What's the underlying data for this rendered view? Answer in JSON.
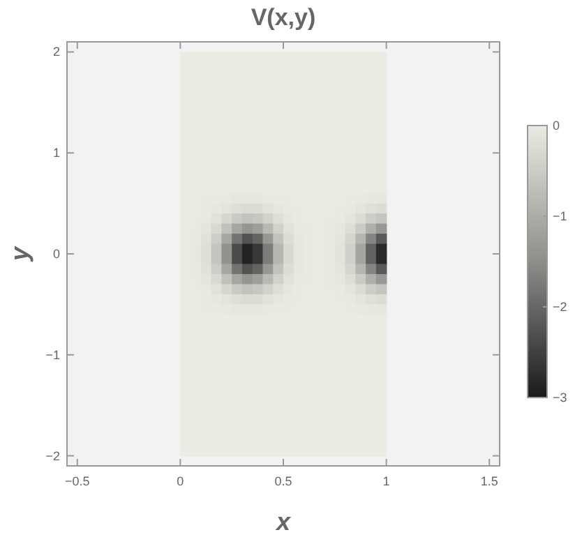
{
  "chart_data": {
    "type": "heatmap",
    "title": "V(x,y)",
    "xlabel": "x",
    "ylabel": "y",
    "xlim": [
      -0.55,
      1.55
    ],
    "xticks": [
      -0.5,
      0,
      0.5,
      1,
      1.5
    ],
    "ylim": [
      -2.1,
      2.1
    ],
    "yticks": [
      -2,
      -1,
      0,
      1,
      2
    ],
    "clim": [
      -3,
      0
    ],
    "cticks": [
      -3,
      -2,
      -1,
      0
    ],
    "x": [
      0.025,
      0.075,
      0.125,
      0.175,
      0.225,
      0.275,
      0.325,
      0.375,
      0.425,
      0.475,
      0.525,
      0.575,
      0.625,
      0.675,
      0.725,
      0.775,
      0.825,
      0.875,
      0.925,
      0.975
    ],
    "y": [
      1.95,
      1.85,
      1.75,
      1.65,
      1.55,
      1.45,
      1.35,
      1.25,
      1.15,
      1.05,
      0.95,
      0.85,
      0.75,
      0.65,
      0.55,
      0.45,
      0.35,
      0.25,
      0.15,
      0.05,
      -0.05,
      -0.15,
      -0.25,
      -0.35,
      -0.45,
      -0.55,
      -0.65,
      -0.75,
      -0.85,
      -0.95,
      -1.05,
      -1.15,
      -1.25,
      -1.35,
      -1.45,
      -1.55,
      -1.65,
      -1.75,
      -1.85,
      -1.95
    ],
    "cells": [
      [
        0,
        0,
        0,
        0,
        0,
        0,
        0,
        0,
        0,
        0,
        0,
        0,
        0,
        0,
        0,
        0,
        0,
        0,
        0,
        0
      ],
      [
        0,
        0,
        0,
        0,
        0,
        0,
        0,
        0,
        0,
        0,
        0,
        0,
        0,
        0,
        0,
        0,
        0,
        0,
        0,
        0
      ],
      [
        0,
        0,
        0,
        0,
        0,
        0,
        0,
        0,
        0,
        0,
        0,
        0,
        0,
        0,
        0,
        0,
        0,
        0,
        0,
        0
      ],
      [
        0,
        0,
        0,
        0,
        0,
        0,
        0,
        0,
        0,
        0,
        0,
        0,
        0,
        0,
        0,
        0,
        0,
        0,
        0,
        0
      ],
      [
        0,
        0,
        0,
        0,
        0,
        0,
        0,
        0,
        0,
        0,
        0,
        0,
        0,
        0,
        0,
        0,
        0,
        0,
        0,
        0
      ],
      [
        0,
        0,
        0,
        0,
        0,
        0,
        0,
        0,
        0,
        0,
        0,
        0,
        0,
        0,
        0,
        0,
        0,
        0,
        0,
        0
      ],
      [
        0,
        0,
        0,
        0,
        0,
        0,
        0,
        0,
        0,
        0,
        0,
        0,
        0,
        0,
        0,
        0,
        0,
        0,
        0,
        0
      ],
      [
        0,
        0,
        0,
        0,
        0,
        0,
        0,
        0,
        0,
        0,
        0,
        0,
        0,
        0,
        0,
        0,
        0,
        0,
        0,
        0
      ],
      [
        0,
        0,
        0,
        0,
        0,
        0,
        0,
        0,
        0,
        0,
        0,
        0,
        0,
        0,
        0,
        0,
        0,
        0,
        0,
        0
      ],
      [
        0,
        0,
        0,
        0,
        0,
        0,
        0,
        0,
        0,
        0,
        0,
        0,
        0,
        0,
        0,
        0,
        0,
        0,
        0,
        0
      ],
      [
        0,
        0,
        0,
        0,
        0,
        0,
        0,
        0,
        0,
        0,
        0,
        0,
        0,
        0,
        0,
        0,
        0,
        0,
        0,
        0
      ],
      [
        0,
        0,
        0,
        0,
        0,
        0,
        0,
        0,
        0,
        0,
        0,
        0,
        0,
        0,
        0,
        0,
        0,
        0,
        0,
        0
      ],
      [
        0,
        0,
        0,
        0,
        0,
        0,
        0,
        0,
        0,
        0,
        0,
        0,
        0,
        0,
        0,
        0,
        0,
        0,
        0,
        0
      ],
      [
        0,
        0,
        0,
        0,
        0,
        0,
        0,
        0,
        0,
        0,
        0,
        0,
        0,
        0,
        0,
        0,
        0,
        0,
        0,
        0
      ],
      [
        0,
        0,
        -0.01,
        -0.01,
        -0.03,
        -0.06,
        -0.07,
        -0.06,
        -0.04,
        -0.02,
        -0.01,
        0,
        0,
        0,
        0,
        0,
        -0.01,
        -0.03,
        -0.05,
        -0.07
      ],
      [
        0,
        0,
        -0.02,
        -0.05,
        -0.12,
        -0.19,
        -0.24,
        -0.22,
        -0.14,
        -0.07,
        -0.02,
        -0.01,
        0,
        0,
        0,
        -0.01,
        -0.04,
        -0.09,
        -0.17,
        -0.23
      ],
      [
        0,
        -0.01,
        -0.04,
        -0.14,
        -0.32,
        -0.53,
        -0.65,
        -0.58,
        -0.38,
        -0.19,
        -0.07,
        -0.02,
        0,
        0,
        -0.01,
        -0.03,
        -0.1,
        -0.25,
        -0.46,
        -0.62
      ],
      [
        0,
        -0.02,
        -0.09,
        -0.29,
        -0.67,
        -1.12,
        -1.37,
        -1.23,
        -0.81,
        -0.4,
        -0.14,
        -0.04,
        -0.01,
        0,
        -0.01,
        -0.06,
        -0.21,
        -0.52,
        -0.97,
        -1.32
      ],
      [
        0,
        -0.04,
        -0.16,
        -0.48,
        -1.1,
        -1.84,
        -2.26,
        -2.03,
        -1.34,
        -0.65,
        -0.23,
        -0.06,
        -0.01,
        0,
        -0.02,
        -0.1,
        -0.34,
        -0.86,
        -1.6,
        -2.18
      ],
      [
        0,
        -0.05,
        -0.2,
        -0.62,
        -1.42,
        -2.36,
        -2.9,
        -2.61,
        -1.72,
        -0.84,
        -0.3,
        -0.08,
        -0.01,
        0,
        -0.03,
        -0.13,
        -0.44,
        -1.11,
        -2.06,
        -2.8
      ],
      [
        0,
        -0.05,
        -0.2,
        -0.62,
        -1.42,
        -2.36,
        -2.9,
        -2.61,
        -1.72,
        -0.84,
        -0.3,
        -0.08,
        -0.01,
        0,
        -0.03,
        -0.13,
        -0.44,
        -1.11,
        -2.06,
        -2.8
      ],
      [
        0,
        -0.04,
        -0.16,
        -0.48,
        -1.1,
        -1.84,
        -2.26,
        -2.03,
        -1.34,
        -0.65,
        -0.23,
        -0.06,
        -0.01,
        0,
        -0.02,
        -0.1,
        -0.34,
        -0.86,
        -1.6,
        -2.18
      ],
      [
        0,
        -0.02,
        -0.09,
        -0.29,
        -0.67,
        -1.12,
        -1.37,
        -1.23,
        -0.81,
        -0.4,
        -0.14,
        -0.04,
        -0.01,
        0,
        -0.01,
        -0.06,
        -0.21,
        -0.52,
        -0.97,
        -1.32
      ],
      [
        0,
        -0.01,
        -0.04,
        -0.14,
        -0.32,
        -0.53,
        -0.65,
        -0.58,
        -0.38,
        -0.19,
        -0.07,
        -0.02,
        0,
        0,
        -0.01,
        -0.03,
        -0.1,
        -0.25,
        -0.46,
        -0.62
      ],
      [
        0,
        0,
        -0.02,
        -0.05,
        -0.12,
        -0.19,
        -0.24,
        -0.22,
        -0.14,
        -0.07,
        -0.02,
        -0.01,
        0,
        0,
        0,
        -0.01,
        -0.04,
        -0.09,
        -0.17,
        -0.23
      ],
      [
        0,
        0,
        -0.01,
        -0.01,
        -0.03,
        -0.06,
        -0.07,
        -0.06,
        -0.04,
        -0.02,
        -0.01,
        0,
        0,
        0,
        0,
        0,
        -0.01,
        -0.03,
        -0.05,
        -0.07
      ],
      [
        0,
        0,
        0,
        0,
        0,
        0,
        0,
        0,
        0,
        0,
        0,
        0,
        0,
        0,
        0,
        0,
        0,
        0,
        0,
        0
      ],
      [
        0,
        0,
        0,
        0,
        0,
        0,
        0,
        0,
        0,
        0,
        0,
        0,
        0,
        0,
        0,
        0,
        0,
        0,
        0,
        0
      ],
      [
        0,
        0,
        0,
        0,
        0,
        0,
        0,
        0,
        0,
        0,
        0,
        0,
        0,
        0,
        0,
        0,
        0,
        0,
        0,
        0
      ],
      [
        0,
        0,
        0,
        0,
        0,
        0,
        0,
        0,
        0,
        0,
        0,
        0,
        0,
        0,
        0,
        0,
        0,
        0,
        0,
        0
      ],
      [
        0,
        0,
        0,
        0,
        0,
        0,
        0,
        0,
        0,
        0,
        0,
        0,
        0,
        0,
        0,
        0,
        0,
        0,
        0,
        0
      ],
      [
        0,
        0,
        0,
        0,
        0,
        0,
        0,
        0,
        0,
        0,
        0,
        0,
        0,
        0,
        0,
        0,
        0,
        0,
        0,
        0
      ],
      [
        0,
        0,
        0,
        0,
        0,
        0,
        0,
        0,
        0,
        0,
        0,
        0,
        0,
        0,
        0,
        0,
        0,
        0,
        0,
        0
      ],
      [
        0,
        0,
        0,
        0,
        0,
        0,
        0,
        0,
        0,
        0,
        0,
        0,
        0,
        0,
        0,
        0,
        0,
        0,
        0,
        0
      ],
      [
        0,
        0,
        0,
        0,
        0,
        0,
        0,
        0,
        0,
        0,
        0,
        0,
        0,
        0,
        0,
        0,
        0,
        0,
        0,
        0
      ],
      [
        0,
        0,
        0,
        0,
        0,
        0,
        0,
        0,
        0,
        0,
        0,
        0,
        0,
        0,
        0,
        0,
        0,
        0,
        0,
        0
      ],
      [
        0,
        0,
        0,
        0,
        0,
        0,
        0,
        0,
        0,
        0,
        0,
        0,
        0,
        0,
        0,
        0,
        0,
        0,
        0,
        0
      ],
      [
        0,
        0,
        0,
        0,
        0,
        0,
        0,
        0,
        0,
        0,
        0,
        0,
        0,
        0,
        0,
        0,
        0,
        0,
        0,
        0
      ],
      [
        0,
        0,
        0,
        0,
        0,
        0,
        0,
        0,
        0,
        0,
        0,
        0,
        0,
        0,
        0,
        0,
        0,
        0,
        0,
        0
      ],
      [
        0,
        0,
        0,
        0,
        0,
        0,
        0,
        0,
        0,
        0,
        0,
        0,
        0,
        0,
        0,
        0,
        0,
        0,
        0,
        0
      ]
    ]
  }
}
